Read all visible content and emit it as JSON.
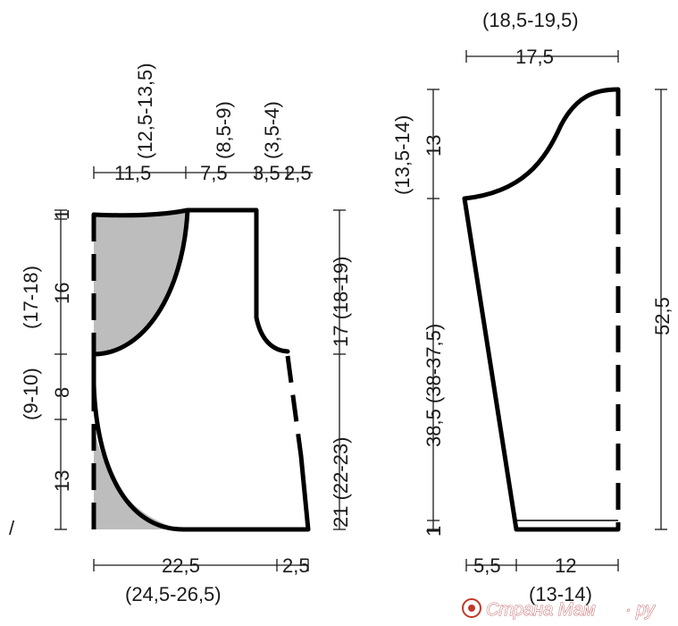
{
  "colors": {
    "outline": "#000000",
    "shading": "#bdbdbd",
    "watermark": "#c0392b"
  },
  "body_piece": {
    "top_neck": "(12,5-13,5)",
    "top_shoulder": "(8,5-9)",
    "top_armhole": "(3,5-4)",
    "top_row": {
      "a": "11,5",
      "b": "7,5",
      "c": "3,5",
      "d": "2,5"
    },
    "left_top_1": "1",
    "left_16": "16",
    "left_17_18": "(17-18)",
    "left_8": "8",
    "left_9_10": "(9-10)",
    "left_13": "13",
    "left_bottom_mark": "/",
    "right_17": "17 (18-19)",
    "right_21": "21 (22-23)",
    "bottom_22_5": "22,5",
    "bottom_2_5": "2,5",
    "bottom_sizes": "(24,5-26,5)"
  },
  "sleeve_piece": {
    "top_sizes": "(18,5-19,5)",
    "top_width": "17,5",
    "left_13_5_14": "(13,5-14)",
    "left_13": "13",
    "left_38_5": "38,5 (38-37,5)",
    "left_1": "1",
    "right_52_5": "52,5",
    "bottom_5_5": "5,5",
    "bottom_12": "12",
    "bottom_sizes": "(13-14)"
  },
  "watermark": {
    "text": "Страна Мам",
    "suffix": "· ру"
  }
}
